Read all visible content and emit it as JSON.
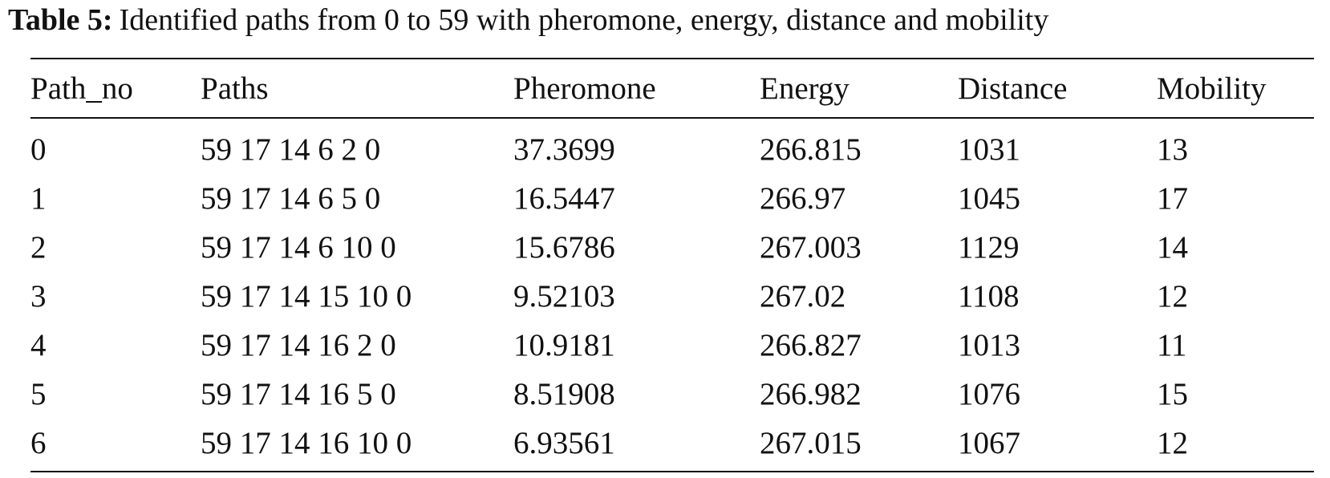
{
  "caption": {
    "label": "Table 5:",
    "text": "Identified paths from 0 to 59 with pheromone, energy, distance and mobility"
  },
  "table": {
    "headers": [
      "Path_no",
      "Paths",
      "Pheromone",
      "Energy",
      "Distance",
      "Mobility"
    ],
    "rows": [
      [
        "0",
        "59 17 14 6 2 0",
        "37.3699",
        "266.815",
        "1031",
        "13"
      ],
      [
        "1",
        "59 17 14 6 5 0",
        "16.5447",
        "266.97",
        "1045",
        "17"
      ],
      [
        "2",
        "59 17 14 6 10 0",
        "15.6786",
        "267.003",
        "1129",
        "14"
      ],
      [
        "3",
        "59 17 14 15 10 0",
        "9.52103",
        "267.02",
        "1108",
        "12"
      ],
      [
        "4",
        "59 17 14 16 2 0",
        "10.9181",
        "266.827",
        "1013",
        "11"
      ],
      [
        "5",
        "59 17 14 16 5 0",
        "8.51908",
        "266.982",
        "1076",
        "15"
      ],
      [
        "6",
        "59 17 14 16 10 0",
        "6.93561",
        "267.015",
        "1067",
        "12"
      ]
    ]
  }
}
